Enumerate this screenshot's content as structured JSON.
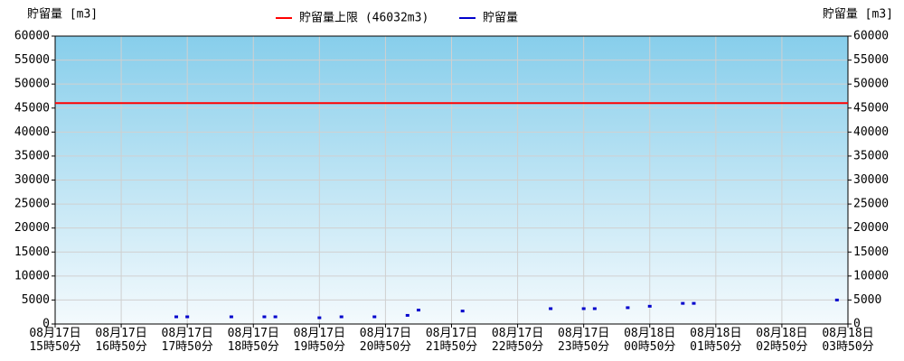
{
  "chart_data": {
    "type": "scatter",
    "y_label": "貯留量 [m3]",
    "y2_label": "貯留量 [m3]",
    "limit": {
      "name": "貯留量上限 (46032m3)",
      "value": 46032,
      "color": "#ff0000"
    },
    "xlim": [
      "08月17日 15時50分",
      "08月18日 03時50分"
    ],
    "xticks": [
      "08月17日 15時50分",
      "08月17日 16時50分",
      "08月17日 17時50分",
      "08月17日 18時50分",
      "08月17日 19時50分",
      "08月17日 20時50分",
      "08月17日 21時50分",
      "08月17日 22時50分",
      "08月17日 23時50分",
      "08月18日 00時50分",
      "08月18日 01時50分",
      "08月18日 02時50分",
      "08月18日 03時50分"
    ],
    "x": [
      "08月17日 17時40分",
      "08月17日 17時50分",
      "08月17日 18時30分",
      "08月17日 19時00分",
      "08月17日 19時10分",
      "08月17日 19時50分",
      "08月17日 20時10分",
      "08月17日 20時40分",
      "08月17日 21時10分",
      "08月17日 21時20分",
      "08月17日 22時00分",
      "08月17日 23時20分",
      "08月17日 23時50分",
      "08月18日 00時00分",
      "08月18日 00時30分",
      "08月18日 00時50分",
      "08月18日 01時20分",
      "08月18日 01時30分",
      "08月18日 03時40分"
    ],
    "series": [
      {
        "name": "貯留量",
        "color": "#0000cc",
        "values": [
          1500,
          1500,
          1500,
          1500,
          1500,
          1300,
          1500,
          1500,
          1800,
          2900,
          2700,
          3200,
          3200,
          3200,
          3400,
          3700,
          4300,
          4300,
          5000
        ]
      }
    ],
    "ylim": [
      0,
      60000
    ],
    "yticks": [
      0,
      5000,
      10000,
      15000,
      20000,
      25000,
      30000,
      35000,
      40000,
      45000,
      50000,
      55000,
      60000
    ],
    "y2lim": [
      0,
      60000
    ],
    "y2ticks": [
      0,
      5000,
      10000,
      15000,
      20000,
      25000,
      30000,
      35000,
      40000,
      45000,
      50000,
      55000,
      60000
    ],
    "grid": true
  }
}
